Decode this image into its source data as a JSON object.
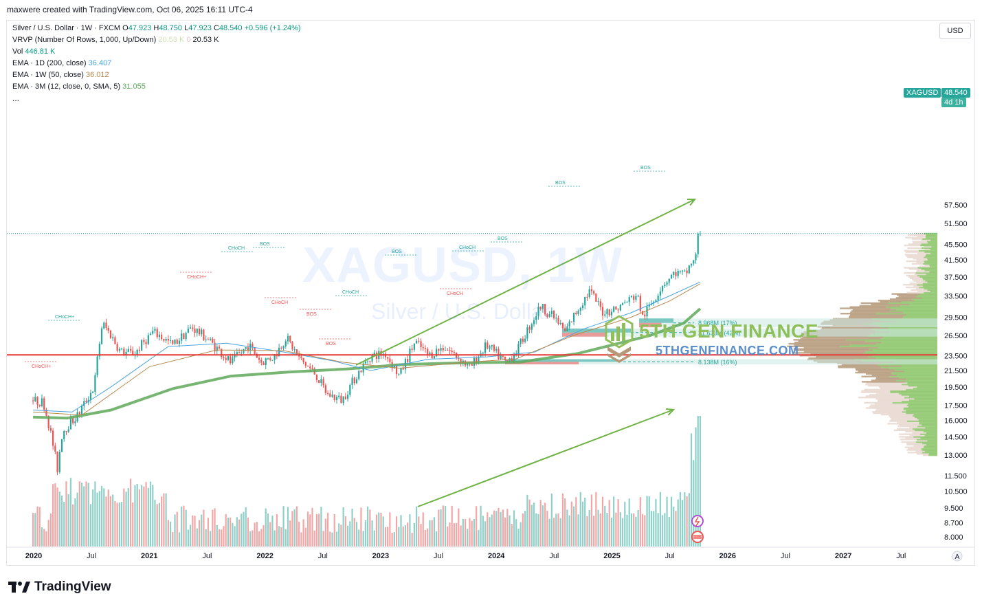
{
  "caption": "maxwere created with TradingView.com, Oct 06, 2025 16:11 UTC-4",
  "legend": {
    "symbol": "Silver / U.S. Dollar · 1W · FXCM",
    "o_label": "O",
    "o": "47.923",
    "h_label": "H",
    "h": "48.750",
    "l_label": "L",
    "l": "47.923",
    "c_label": "C",
    "c": "48.540",
    "chg": "+0.596 (+1.24%)",
    "vrvp": "VRVP (Number Of Rows, 1,000, Up/Down)",
    "vrvp_v1": "20.53 K",
    "vrvp_v2": "0",
    "vrvp_v3": "20.53 K",
    "vol_label": "Vol",
    "vol": "446.81 K",
    "ema1_label": "EMA · 1D (200, close)",
    "ema1": "36.407",
    "ema2_label": "EMA · 1W (50, close)",
    "ema2": "36.012",
    "ema3_label": "EMA · 3M (12, close, 0, SMA, 5)",
    "ema3": "31.055",
    "more": "..."
  },
  "currency_button": "USD",
  "symbol_tag": "XAGUSD",
  "price_tag": "48.540",
  "countdown_tag": "4d 1h",
  "watermark": {
    "symbol": "XAGUSD, 1W",
    "name": "Silver / U.S. Dollar"
  },
  "brand": {
    "name": "5TH GEN FINANCE",
    "url": "5THGENFINANCE.COM"
  },
  "footer": "TradingView",
  "colors": {
    "up": "#26a69a",
    "down": "#ef5350",
    "ema200d": "#4aa3df",
    "ema50w": "#b5894f",
    "ema3m": "#5fa85a",
    "support": "#e53935",
    "arrow": "#6fb344"
  },
  "chart_data": {
    "type": "candlestick",
    "timeframe": "1W",
    "x_labels": [
      "2020",
      "Jul",
      "2021",
      "Jul",
      "2022",
      "Jul",
      "2023",
      "Jul",
      "2024",
      "Jul",
      "2025",
      "Jul",
      "2026",
      "Jul",
      "2027",
      "Jul"
    ],
    "y_ticks": [
      8.0,
      8.7,
      9.5,
      10.5,
      11.5,
      13.0,
      14.5,
      16.0,
      17.5,
      19.5,
      21.5,
      23.5,
      26.5,
      29.5,
      33.5,
      37.5,
      41.5,
      45.5,
      51.5,
      57.5
    ],
    "y_tick_labels": [
      "8.000",
      "8.700",
      "9.500",
      "10.500",
      "11.500",
      "13.000",
      "14.500",
      "16.000",
      "17.500",
      "19.500",
      "21.500",
      "23.500",
      "26.500",
      "29.500",
      "33.500",
      "37.500",
      "41.500",
      "45.500",
      "51.500",
      "57.500"
    ],
    "y_scale": "log",
    "close_path": [
      [
        "2019-12-30",
        18.0
      ],
      [
        "2020-02-01",
        17.8
      ],
      [
        "2020-03-16",
        12.0
      ],
      [
        "2020-04-01",
        15.0
      ],
      [
        "2020-05-20",
        16.5
      ],
      [
        "2020-07-10",
        19.5
      ],
      [
        "2020-08-05",
        28.5
      ],
      [
        "2020-09-01",
        26.5
      ],
      [
        "2020-10-01",
        24.0
      ],
      [
        "2020-11-15",
        23.8
      ],
      [
        "2021-01-10",
        27.0
      ],
      [
        "2021-02-01",
        26.5
      ],
      [
        "2021-03-15",
        25.0
      ],
      [
        "2021-05-15",
        27.8
      ],
      [
        "2021-07-01",
        26.0
      ],
      [
        "2021-09-15",
        22.5
      ],
      [
        "2021-11-10",
        25.0
      ],
      [
        "2021-12-20",
        22.6
      ],
      [
        "2022-02-01",
        23.5
      ],
      [
        "2022-03-08",
        26.2
      ],
      [
        "2022-04-20",
        23.0
      ],
      [
        "2022-06-10",
        21.0
      ],
      [
        "2022-07-15",
        18.7
      ],
      [
        "2022-09-01",
        18.0
      ],
      [
        "2022-10-10",
        20.5
      ],
      [
        "2022-12-01",
        23.5
      ],
      [
        "2023-01-15",
        23.8
      ],
      [
        "2023-03-01",
        20.8
      ],
      [
        "2023-04-20",
        25.5
      ],
      [
        "2023-06-01",
        23.5
      ],
      [
        "2023-07-20",
        24.8
      ],
      [
        "2023-09-10",
        23.0
      ],
      [
        "2023-10-10",
        21.8
      ],
      [
        "2023-12-01",
        25.0
      ],
      [
        "2024-02-01",
        22.5
      ],
      [
        "2024-03-10",
        24.5
      ],
      [
        "2024-04-15",
        28.0
      ],
      [
        "2024-05-20",
        31.5
      ],
      [
        "2024-07-01",
        29.5
      ],
      [
        "2024-08-05",
        27.0
      ],
      [
        "2024-09-15",
        31.0
      ],
      [
        "2024-10-22",
        34.5
      ],
      [
        "2024-12-01",
        30.5
      ],
      [
        "2025-01-15",
        31.0
      ],
      [
        "2025-03-20",
        33.8
      ],
      [
        "2025-04-07",
        29.5
      ],
      [
        "2025-05-10",
        32.5
      ],
      [
        "2025-06-10",
        36.0
      ],
      [
        "2025-07-20",
        38.5
      ],
      [
        "2025-08-20",
        38.0
      ],
      [
        "2025-09-15",
        42.0
      ],
      [
        "2025-10-06",
        48.54
      ]
    ],
    "ema_200d": [
      [
        "2019-12-30",
        17.0
      ],
      [
        "2020-05-01",
        16.8
      ],
      [
        "2020-09-01",
        19.5
      ],
      [
        "2021-03-01",
        24.8
      ],
      [
        "2021-09-01",
        25.3
      ],
      [
        "2022-03-01",
        24.0
      ],
      [
        "2022-08-01",
        22.8
      ],
      [
        "2022-12-01",
        21.5
      ],
      [
        "2023-06-01",
        23.0
      ],
      [
        "2023-12-01",
        23.3
      ],
      [
        "2024-05-01",
        24.0
      ],
      [
        "2024-10-01",
        27.5
      ],
      [
        "2025-03-01",
        30.3
      ],
      [
        "2025-07-01",
        33.5
      ],
      [
        "2025-10-06",
        36.4
      ]
    ],
    "ema_50w": [
      [
        "2019-12-30",
        16.8
      ],
      [
        "2020-06-01",
        16.5
      ],
      [
        "2021-01-01",
        22.0
      ],
      [
        "2021-08-01",
        24.3
      ],
      [
        "2022-03-01",
        24.2
      ],
      [
        "2022-09-01",
        22.6
      ],
      [
        "2023-03-01",
        21.8
      ],
      [
        "2023-10-01",
        22.6
      ],
      [
        "2024-03-01",
        23.0
      ],
      [
        "2024-09-01",
        26.5
      ],
      [
        "2025-03-01",
        29.5
      ],
      [
        "2025-07-01",
        32.5
      ],
      [
        "2025-10-06",
        36.0
      ]
    ],
    "ema_3m": [
      [
        "2019-12-30",
        16.3
      ],
      [
        "2020-04-15",
        16.2
      ],
      [
        "2020-09-01",
        17.0
      ],
      [
        "2021-03-15",
        19.3
      ],
      [
        "2021-09-15",
        20.8
      ],
      [
        "2022-03-15",
        21.3
      ],
      [
        "2022-09-15",
        21.7
      ],
      [
        "2023-03-15",
        22.3
      ],
      [
        "2023-09-15",
        22.5
      ],
      [
        "2024-03-15",
        22.6
      ],
      [
        "2024-09-15",
        23.8
      ],
      [
        "2025-01-15",
        25.2
      ],
      [
        "2025-05-01",
        26.5
      ],
      [
        "2025-08-15",
        28.5
      ],
      [
        "2025-10-06",
        31.05
      ]
    ],
    "support_level": 23.6,
    "zones": [
      {
        "label": "8.968M (17%)",
        "low": 27.8,
        "high": 29.3
      },
      {
        "label": "21.633M (42%)",
        "low": 26.3,
        "high": 27.6
      },
      {
        "label": "8.138M (16%)",
        "low": 22.3,
        "high": 23.0
      }
    ],
    "annotations": [
      "CHoCH",
      "CHoCH+",
      "BOS"
    ]
  }
}
